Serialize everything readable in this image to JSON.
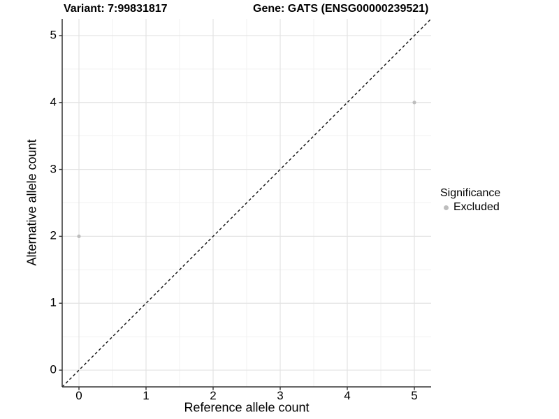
{
  "titles": {
    "variant": "Variant: 7:99831817",
    "gene": "Gene: GATS (ENSG00000239521)"
  },
  "chart_data": {
    "type": "scatter",
    "title_left": "Variant: 7:99831817",
    "title_right": "Gene: GATS (ENSG00000239521)",
    "xlabel": "Reference allele count",
    "ylabel": "Alternative allele count",
    "xticks": [
      0,
      1,
      2,
      3,
      4,
      5
    ],
    "yticks": [
      0,
      1,
      2,
      3,
      4,
      5
    ],
    "x_domain": [
      -0.25,
      5.25
    ],
    "y_domain": [
      -0.25,
      5.25
    ],
    "grid": "major and minor gridlines on, white background",
    "points": [
      {
        "x": 0,
        "y": 2,
        "series": "Excluded"
      },
      {
        "x": 5,
        "y": 4,
        "series": "Excluded"
      }
    ],
    "series": [
      {
        "name": "Excluded",
        "color": "#bdbdbd"
      }
    ],
    "identity_line": {
      "style": "dashed",
      "from": [
        -0.25,
        -0.25
      ],
      "to": [
        5.25,
        5.25
      ],
      "color": "#111111"
    },
    "legend": {
      "title": "Significance",
      "position": "right",
      "items": [
        {
          "label": "Excluded",
          "color": "#bdbdbd"
        }
      ]
    },
    "colors": {
      "grid_major": "#e3e3e3",
      "grid_minor": "#f1f1f1",
      "axis_line": "#333333",
      "tick_mark": "#333333",
      "text": "#000000"
    }
  }
}
